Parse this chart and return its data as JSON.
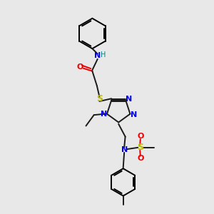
{
  "bg_color": "#e8e8e8",
  "bond_color": "#1a1a1a",
  "N_color": "#0000ee",
  "O_color": "#ee0000",
  "S_color": "#bbbb00",
  "NH_color": "#008080",
  "figsize": [
    3.0,
    3.0
  ],
  "dpi": 100,
  "xlim": [
    0,
    10
  ],
  "ylim": [
    0,
    10
  ]
}
